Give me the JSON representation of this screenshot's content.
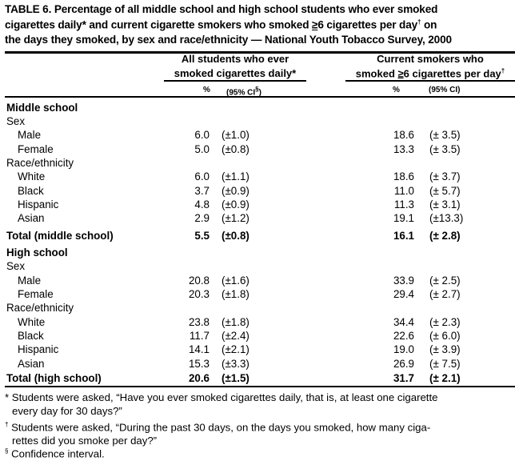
{
  "title": {
    "line1": "TABLE 6. Percentage of all middle school and high school students who ever smoked",
    "line2_a": "cigarettes daily* and current cigarette smokers who smoked ",
    "line2_geq": "≥",
    "line2_b": "6 cigarettes per day",
    "line2_mark": "†",
    "line2_c": " on",
    "line3": "the days they smoked, by sex and race/ethnicity — National Youth Tobacco Survey, 2000"
  },
  "columns": {
    "group1_line1": "All students who ever",
    "group1_line2": "smoked cigarettes daily*",
    "group2_line1": "Current smokers who",
    "group2_line2_a": "smoked ",
    "group2_line2_geq": "≥",
    "group2_line2_b": "6 cigarettes per day",
    "group2_line2_mark": "†",
    "pct": "%",
    "ci1": "(95% CI",
    "ci1_mark": "§",
    "ci1_close": ")",
    "ci2": "(95% CI)"
  },
  "rows": [
    {
      "label": "Middle school",
      "type": "section"
    },
    {
      "label": "Sex",
      "type": "group"
    },
    {
      "label": "Male",
      "type": "item",
      "pct1": "6.0",
      "ci1": "(±1.0)",
      "pct2": "18.6",
      "ci2": "(± 3.5)"
    },
    {
      "label": "Female",
      "type": "item",
      "pct1": "5.0",
      "ci1": "(±0.8)",
      "pct2": "13.3",
      "ci2": "(± 3.5)"
    },
    {
      "label": "Race/ethnicity",
      "type": "group"
    },
    {
      "label": "White",
      "type": "item",
      "pct1": "6.0",
      "ci1": "(±1.1)",
      "pct2": "18.6",
      "ci2": "(± 3.7)"
    },
    {
      "label": "Black",
      "type": "item",
      "pct1": "3.7",
      "ci1": "(±0.9)",
      "pct2": "11.0",
      "ci2": "(± 5.7)"
    },
    {
      "label": "Hispanic",
      "type": "item",
      "pct1": "4.8",
      "ci1": "(±0.9)",
      "pct2": "11.3",
      "ci2": "(± 3.1)"
    },
    {
      "label": "Asian",
      "type": "item",
      "pct1": "2.9",
      "ci1": "(±1.2)",
      "pct2": "19.1",
      "ci2": "(±13.3)"
    },
    {
      "label": "Total (middle school)",
      "type": "total",
      "pct1": "5.5",
      "ci1": "(±0.8)",
      "pct2": "16.1",
      "ci2": "(± 2.8)"
    },
    {
      "label": "High school",
      "type": "section"
    },
    {
      "label": "Sex",
      "type": "group"
    },
    {
      "label": "Male",
      "type": "item",
      "pct1": "20.8",
      "ci1": "(±1.6)",
      "pct2": "33.9",
      "ci2": "(± 2.5)"
    },
    {
      "label": "Female",
      "type": "item",
      "pct1": "20.3",
      "ci1": "(±1.8)",
      "pct2": "29.4",
      "ci2": "(± 2.7)"
    },
    {
      "label": "Race/ethnicity",
      "type": "group"
    },
    {
      "label": "White",
      "type": "item",
      "pct1": "23.8",
      "ci1": "(±1.8)",
      "pct2": "34.4",
      "ci2": "(± 2.3)"
    },
    {
      "label": "Black",
      "type": "item",
      "pct1": "11.7",
      "ci1": "(±2.4)",
      "pct2": "22.6",
      "ci2": "(± 6.0)"
    },
    {
      "label": "Hispanic",
      "type": "item",
      "pct1": "14.1",
      "ci1": "(±2.1)",
      "pct2": "19.0",
      "ci2": "(± 3.9)"
    },
    {
      "label": "Asian",
      "type": "item",
      "pct1": "15.3",
      "ci1": "(±3.3)",
      "pct2": "26.9",
      "ci2": "(± 7.5)"
    },
    {
      "label": "Total (high school)",
      "type": "total",
      "pct1": "20.6",
      "ci1": "(±1.5)",
      "pct2": "31.7",
      "ci2": "(± 2.1)"
    }
  ],
  "footnotes": {
    "f1_mark": "*",
    "f1_line1": " Students were asked, “Have you ever smoked cigarettes daily, that is, at least one cigarette",
    "f1_line2": "every day for 30 days?”",
    "f2_mark": "†",
    "f2_line1": " Students were asked, “During the past 30 days, on the days you smoked, how many ciga-",
    "f2_line2": "rettes did you smoke per day?”",
    "f3_mark": "§",
    "f3_line1": " Confidence interval."
  }
}
